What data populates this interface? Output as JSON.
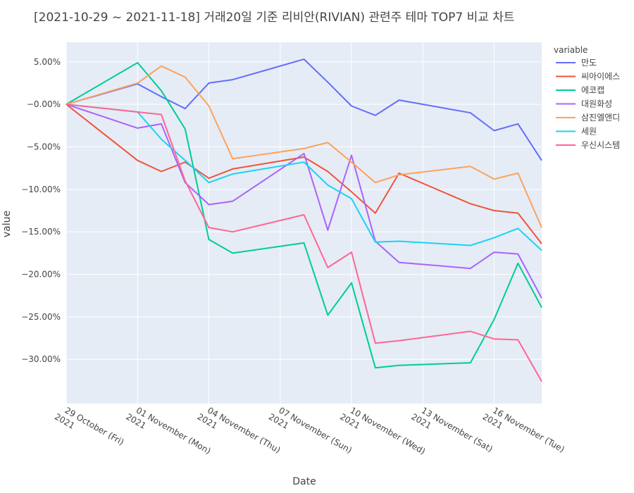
{
  "chart_data": {
    "type": "line",
    "title": "[2021-10-29 ~ 2021-11-18] 거래20일 기준 리비안(RIVIAN) 관련주 테마 TOP7 비교 차트",
    "xlabel": "Date",
    "ylabel": "value",
    "legend_title": "variable",
    "legend_position": "right",
    "grid": true,
    "background": "#E5ECF6",
    "x": [
      "2021-10-29",
      "2021-11-01",
      "2021-11-02",
      "2021-11-03",
      "2021-11-04",
      "2021-11-05",
      "2021-11-08",
      "2021-11-09",
      "2021-11-10",
      "2021-11-11",
      "2021-11-12",
      "2021-11-15",
      "2021-11-16",
      "2021-11-17",
      "2021-11-18"
    ],
    "xlim": [
      "2021-10-29",
      "2021-11-18"
    ],
    "ylim": [
      -35.2,
      7.3
    ],
    "x_ticks": [
      {
        "date": "2021-10-29",
        "line1": "29 October (Fri)",
        "line2": "2021"
      },
      {
        "date": "2021-11-01",
        "line1": "01 November (Mon)",
        "line2": "2021"
      },
      {
        "date": "2021-11-04",
        "line1": "04 November (Thu)",
        "line2": "2021"
      },
      {
        "date": "2021-11-07",
        "line1": "07 November (Sun)",
        "line2": "2021"
      },
      {
        "date": "2021-11-10",
        "line1": "10 November (Wed)",
        "line2": "2021"
      },
      {
        "date": "2021-11-13",
        "line1": "13 November (Sat)",
        "line2": "2021"
      },
      {
        "date": "2021-11-16",
        "line1": "16 November (Tue)",
        "line2": "2021"
      }
    ],
    "y_ticks": [
      {
        "value": 5,
        "label": "5.00%"
      },
      {
        "value": 0,
        "label": "−0.00%"
      },
      {
        "value": -5,
        "label": "−5.00%"
      },
      {
        "value": -10,
        "label": "−10.00%"
      },
      {
        "value": -15,
        "label": "−15.00%"
      },
      {
        "value": -20,
        "label": "−20.00%"
      },
      {
        "value": -25,
        "label": "−25.00%"
      },
      {
        "value": -30,
        "label": "−30.00%"
      }
    ],
    "series": [
      {
        "name": "만도",
        "color": "#636EFA",
        "values": [
          0,
          2.4,
          0.9,
          -0.5,
          2.5,
          2.9,
          5.3,
          2.6,
          -0.2,
          -1.3,
          0.5,
          -1.0,
          -3.1,
          -2.3,
          -6.6
        ]
      },
      {
        "name": "씨아이에스",
        "color": "#EF553B",
        "values": [
          0,
          -6.6,
          -7.9,
          -6.8,
          -8.7,
          -7.6,
          -6.2,
          -7.9,
          -10.3,
          -12.8,
          -8.1,
          -11.7,
          -12.5,
          -12.8,
          -16.4
        ]
      },
      {
        "name": "에코캡",
        "color": "#00CC96",
        "values": [
          0,
          4.9,
          1.6,
          -2.9,
          -15.9,
          -17.5,
          -16.3,
          -24.8,
          -21.0,
          -31.0,
          -30.7,
          -30.4,
          -25.3,
          -18.7,
          -23.9
        ]
      },
      {
        "name": "대원화성",
        "color": "#AB63FA",
        "values": [
          0,
          -2.8,
          -2.3,
          -9.2,
          -11.8,
          -11.4,
          -5.8,
          -14.8,
          -6.0,
          -16.1,
          -18.6,
          -19.3,
          -17.4,
          -17.6,
          -22.8
        ]
      },
      {
        "name": "삼진엘앤디",
        "color": "#FFA15A",
        "values": [
          0,
          2.5,
          4.5,
          3.2,
          -0.2,
          -6.4,
          -5.2,
          -4.5,
          -6.8,
          -9.2,
          -8.3,
          -7.3,
          -8.8,
          -8.1,
          -14.5
        ]
      },
      {
        "name": "세원",
        "color": "#19D3F3",
        "values": [
          0,
          -0.9,
          -4.1,
          -6.6,
          -9.2,
          -8.2,
          -6.8,
          -9.5,
          -11.1,
          -16.2,
          -16.1,
          -16.6,
          -15.7,
          -14.6,
          -17.2
        ]
      },
      {
        "name": "우신시스템",
        "color": "#FF6692",
        "values": [
          0,
          -0.9,
          -1.2,
          -9.0,
          -14.5,
          -15.0,
          -13.0,
          -19.2,
          -17.4,
          -28.1,
          -27.8,
          -26.7,
          -27.6,
          -27.7,
          -32.6
        ]
      }
    ]
  }
}
